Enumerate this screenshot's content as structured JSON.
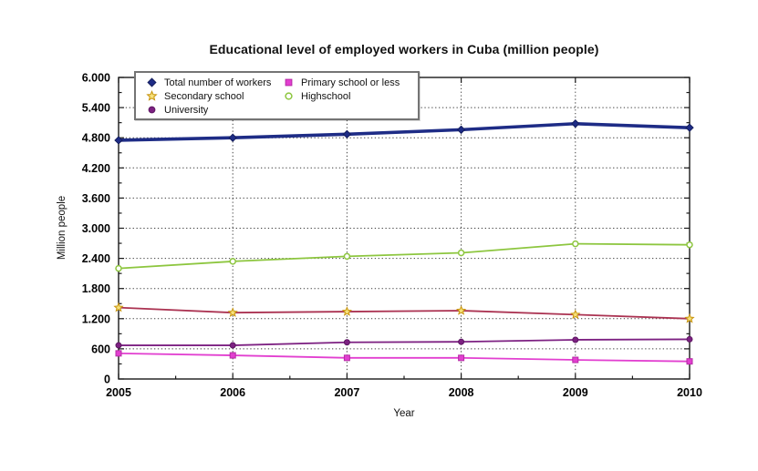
{
  "chart_data": {
    "type": "line",
    "title": "Educational level of employed workers in Cuba (million people)",
    "xlabel": "Year",
    "ylabel": "Million people",
    "x": [
      2005,
      2006,
      2007,
      2008,
      2009,
      2010
    ],
    "xtick_labels": [
      "2005",
      "2006",
      "2007",
      "2008",
      "2009",
      "2010"
    ],
    "xlim": [
      2005,
      2010
    ],
    "ylim": [
      0,
      6
    ],
    "yticks": [
      0,
      0.6,
      1.2,
      1.8,
      2.4,
      3.0,
      3.6,
      4.2,
      4.8,
      5.4,
      6.0
    ],
    "ytick_labels": [
      "0",
      "600",
      "1.200",
      "1.800",
      "2.400",
      "3.000",
      "3.600",
      "4.200",
      "4.800",
      "5.400",
      "6.000"
    ],
    "grid": true,
    "legend_position": "top-left",
    "axis_color": "#1a1a1a",
    "grid_color": "#3d3d3d",
    "series": [
      {
        "name": "Total number of workers",
        "color": "#1e2c86",
        "marker": "diamond",
        "marker_fill": "#1e2c86",
        "marker_stroke": "#141e5e",
        "line_width": 3.6,
        "values": [
          4.75,
          4.8,
          4.87,
          4.96,
          5.08,
          5.0
        ]
      },
      {
        "name": "Secondary school",
        "color": "#ab3352",
        "marker": "star",
        "marker_fill": "#f7e17a",
        "marker_stroke": "#c7940e",
        "line_width": 1.8,
        "values": [
          1.42,
          1.32,
          1.34,
          1.36,
          1.28,
          1.2
        ]
      },
      {
        "name": "University",
        "color": "#7d2182",
        "marker": "circle",
        "marker_fill": "#7d2182",
        "marker_stroke": "#5d1762",
        "line_width": 1.8,
        "values": [
          0.67,
          0.67,
          0.73,
          0.74,
          0.78,
          0.79
        ]
      },
      {
        "name": "Primary school or less",
        "color": "#e23fd0",
        "marker": "square",
        "marker_fill": "#e23fd0",
        "marker_stroke": "#b62ba6",
        "line_width": 1.8,
        "values": [
          0.51,
          0.47,
          0.42,
          0.42,
          0.38,
          0.35
        ]
      },
      {
        "name": "Highschool",
        "color": "#8dc63f",
        "marker": "circle-open",
        "marker_fill": "#ffffff",
        "marker_stroke": "#8dc63f",
        "line_width": 1.8,
        "values": [
          2.2,
          2.34,
          2.44,
          2.51,
          2.69,
          2.67
        ]
      }
    ]
  },
  "legend": {
    "column1_series": [
      0,
      1,
      2
    ],
    "column2_series": [
      3,
      4
    ]
  }
}
